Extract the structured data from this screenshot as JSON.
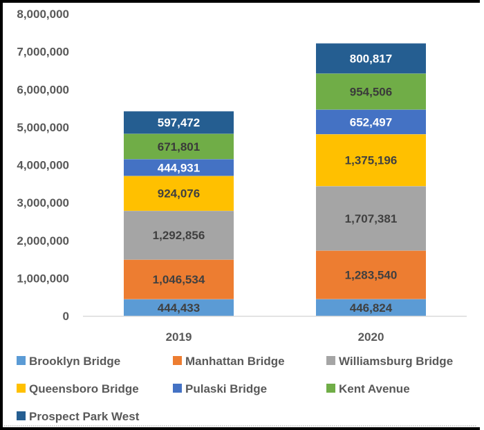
{
  "chart_data": {
    "type": "bar",
    "stacked": true,
    "title": "",
    "xlabel": "",
    "ylabel": "",
    "categories": [
      "2019",
      "2020"
    ],
    "ylim": [
      0,
      8000000
    ],
    "yticks": [
      0,
      1000000,
      2000000,
      3000000,
      4000000,
      5000000,
      6000000,
      7000000,
      8000000
    ],
    "ytick_labels": [
      "0",
      "1,000,000",
      "2,000,000",
      "3,000,000",
      "4,000,000",
      "5,000,000",
      "6,000,000",
      "7,000,000",
      "8,000,000"
    ],
    "grid": false,
    "legend_position": "bottom",
    "series": [
      {
        "name": "Brooklyn Bridge",
        "color": "#5B9BD5",
        "label_color": "#404040",
        "values": [
          444433,
          446824
        ],
        "labels": [
          "444,433",
          "446,824"
        ]
      },
      {
        "name": "Manhattan Bridge",
        "color": "#ED7D31",
        "label_color": "#404040",
        "values": [
          1046534,
          1283540
        ],
        "labels": [
          "1,046,534",
          "1,283,540"
        ]
      },
      {
        "name": "Williamsburg Bridge",
        "color": "#A5A5A5",
        "label_color": "#404040",
        "values": [
          1292856,
          1707381
        ],
        "labels": [
          "1,292,856",
          "1,707,381"
        ]
      },
      {
        "name": "Queensboro Bridge",
        "color": "#FFC000",
        "label_color": "#404040",
        "values": [
          924076,
          1375196
        ],
        "labels": [
          "924,076",
          "1,375,196"
        ]
      },
      {
        "name": "Pulaski Bridge",
        "color": "#4472C4",
        "label_color": "#FFFFFF",
        "values": [
          444931,
          652497
        ],
        "labels": [
          "444,931",
          "652,497"
        ]
      },
      {
        "name": "Kent Avenue",
        "color": "#70AD47",
        "label_color": "#3A3A3A",
        "values": [
          671801,
          954506
        ],
        "labels": [
          "671,801",
          "954,506"
        ]
      },
      {
        "name": "Prospect Park West",
        "color": "#255E91",
        "label_color": "#FFFFFF",
        "values": [
          597472,
          800817
        ],
        "labels": [
          "597,472",
          "800,817"
        ]
      }
    ]
  }
}
